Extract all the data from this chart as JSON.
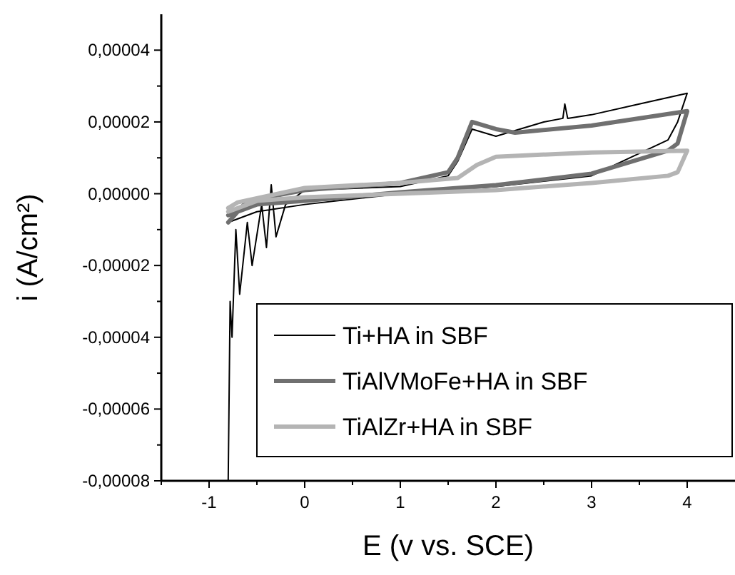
{
  "chart_data": {
    "type": "line",
    "xlabel": "E (v vs. SCE)",
    "ylabel": "i (A/cm²)",
    "xlim": [
      -1.5,
      4.5
    ],
    "ylim": [
      -8e-05,
      5e-05
    ],
    "xticks": [
      {
        "value": -1.5,
        "label": null
      },
      -1,
      {
        "value": -0.5,
        "label": null
      },
      0,
      {
        "value": 0.5,
        "label": null
      },
      1,
      {
        "value": 1.5,
        "label": null
      },
      2,
      {
        "value": 2.5,
        "label": null
      },
      3,
      {
        "value": 3.5,
        "label": null
      },
      4
    ],
    "yticks": [
      {
        "value": -8e-05,
        "label": "-0,00008"
      },
      {
        "value": -7e-05,
        "label": null
      },
      {
        "value": -6e-05,
        "label": "-0,00006"
      },
      {
        "value": -5e-05,
        "label": null
      },
      {
        "value": -4e-05,
        "label": "-0,00004"
      },
      {
        "value": -3e-05,
        "label": null
      },
      {
        "value": -2e-05,
        "label": "-0,00002"
      },
      {
        "value": -1e-05,
        "label": null
      },
      {
        "value": 0,
        "label": "0,00000"
      },
      {
        "value": 1e-05,
        "label": null
      },
      {
        "value": 2e-05,
        "label": "0,00002"
      },
      {
        "value": 3e-05,
        "label": null
      },
      {
        "value": 4e-05,
        "label": "0,00004"
      }
    ],
    "legend": "bottom right",
    "marker": "none",
    "line_style": "solid",
    "series": [
      {
        "name": "Ti+HA in SBF",
        "color": "#000000",
        "x": [
          -0.8,
          -0.78,
          -0.76,
          -0.72,
          -0.68,
          -0.6,
          -0.55,
          -0.45,
          -0.4,
          -0.35,
          -0.3,
          -0.2,
          0,
          1,
          1.5,
          1.6,
          1.75,
          2,
          2.5,
          2.7,
          2.72,
          2.75,
          3,
          3.5,
          4,
          3.9,
          3.8,
          3,
          2,
          1,
          0,
          -0.5,
          -0.8
        ],
        "values": [
          -8e-05,
          -3e-05,
          -4e-05,
          -1e-05,
          -2.8e-05,
          -8e-06,
          -2e-05,
          -3e-06,
          -1.5e-05,
          2.5e-06,
          -1.2e-05,
          -3e-06,
          1e-06,
          2e-06,
          5e-06,
          9e-06,
          1.8e-05,
          1.6e-05,
          2e-05,
          2.1e-05,
          2.5e-05,
          2.1e-05,
          2.2e-05,
          2.5e-05,
          2.8e-05,
          2e-05,
          1.5e-05,
          5e-06,
          2e-06,
          0,
          -3e-06,
          -5e-06,
          -8e-06
        ]
      },
      {
        "name": "TiAlVMoFe+HA in SBF",
        "color": "#707070",
        "x": [
          -0.8,
          -0.6,
          0,
          1,
          1.5,
          1.6,
          1.75,
          2,
          2.2,
          3,
          4,
          3.9,
          3.8,
          3,
          2,
          1,
          0,
          -0.5,
          -0.8
        ],
        "values": [
          -8e-06,
          -2e-06,
          1e-06,
          3e-06,
          6e-06,
          1e-05,
          2e-05,
          1.8e-05,
          1.7e-05,
          1.9e-05,
          2.3e-05,
          1.4e-05,
          1.2e-05,
          5.6e-06,
          2.4e-06,
          4e-07,
          -2e-06,
          -3e-06,
          -6e-06
        ]
      },
      {
        "name": "TiAlZr+HA in SBF",
        "color": "#b4b4b4",
        "x": [
          -0.8,
          -0.7,
          0,
          1,
          1.6,
          1.8,
          2,
          3,
          4,
          3.9,
          3.8,
          3,
          2,
          1,
          0,
          -0.5,
          -0.8
        ],
        "values": [
          -4e-06,
          -2.4e-06,
          1.6e-06,
          3e-06,
          4.4e-06,
          8e-06,
          1.03e-05,
          1.15e-05,
          1.2e-05,
          6e-06,
          5e-06,
          3e-06,
          1e-06,
          0,
          -1e-06,
          -2e-06,
          -5e-06
        ]
      }
    ]
  }
}
